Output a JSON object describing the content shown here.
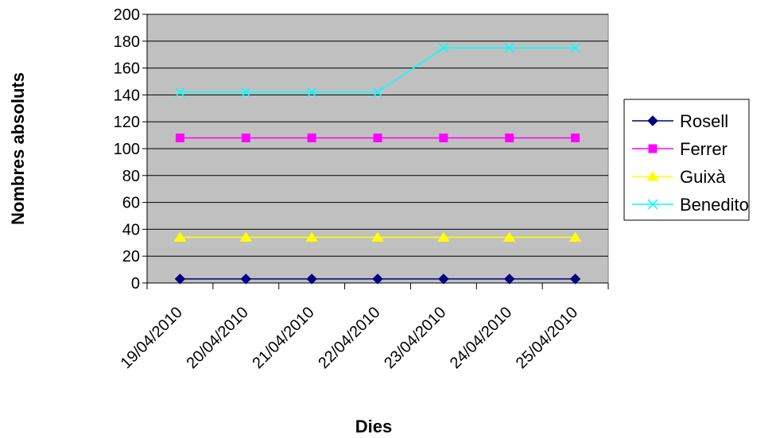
{
  "chart_data": {
    "type": "line",
    "title": "",
    "xlabel": "Dies",
    "ylabel": "Nombres absoluts",
    "categories": [
      "19/04/2010",
      "20/04/2010",
      "21/04/2010",
      "22/04/2010",
      "23/04/2010",
      "24/04/2010",
      "25/04/2010"
    ],
    "ylim": [
      0,
      200
    ],
    "yticks": [
      0,
      20,
      40,
      60,
      80,
      100,
      120,
      140,
      160,
      180,
      200
    ],
    "grid": true,
    "legend_position": "right",
    "plot_background": "#c0c0c0",
    "series": [
      {
        "name": "Rosell",
        "values": [
          3,
          3,
          3,
          3,
          3,
          3,
          3
        ],
        "color": "#000080",
        "marker": "diamond"
      },
      {
        "name": "Ferrer",
        "values": [
          108,
          108,
          108,
          108,
          108,
          108,
          108
        ],
        "color": "#ff00ff",
        "marker": "square"
      },
      {
        "name": "Guixà",
        "values": [
          34,
          34,
          34,
          34,
          34,
          34,
          34
        ],
        "color": "#ffff00",
        "marker": "triangle"
      },
      {
        "name": "Benedito",
        "values": [
          142,
          142,
          142,
          142,
          175,
          175,
          175
        ],
        "color": "#00ffff",
        "marker": "x"
      }
    ]
  }
}
